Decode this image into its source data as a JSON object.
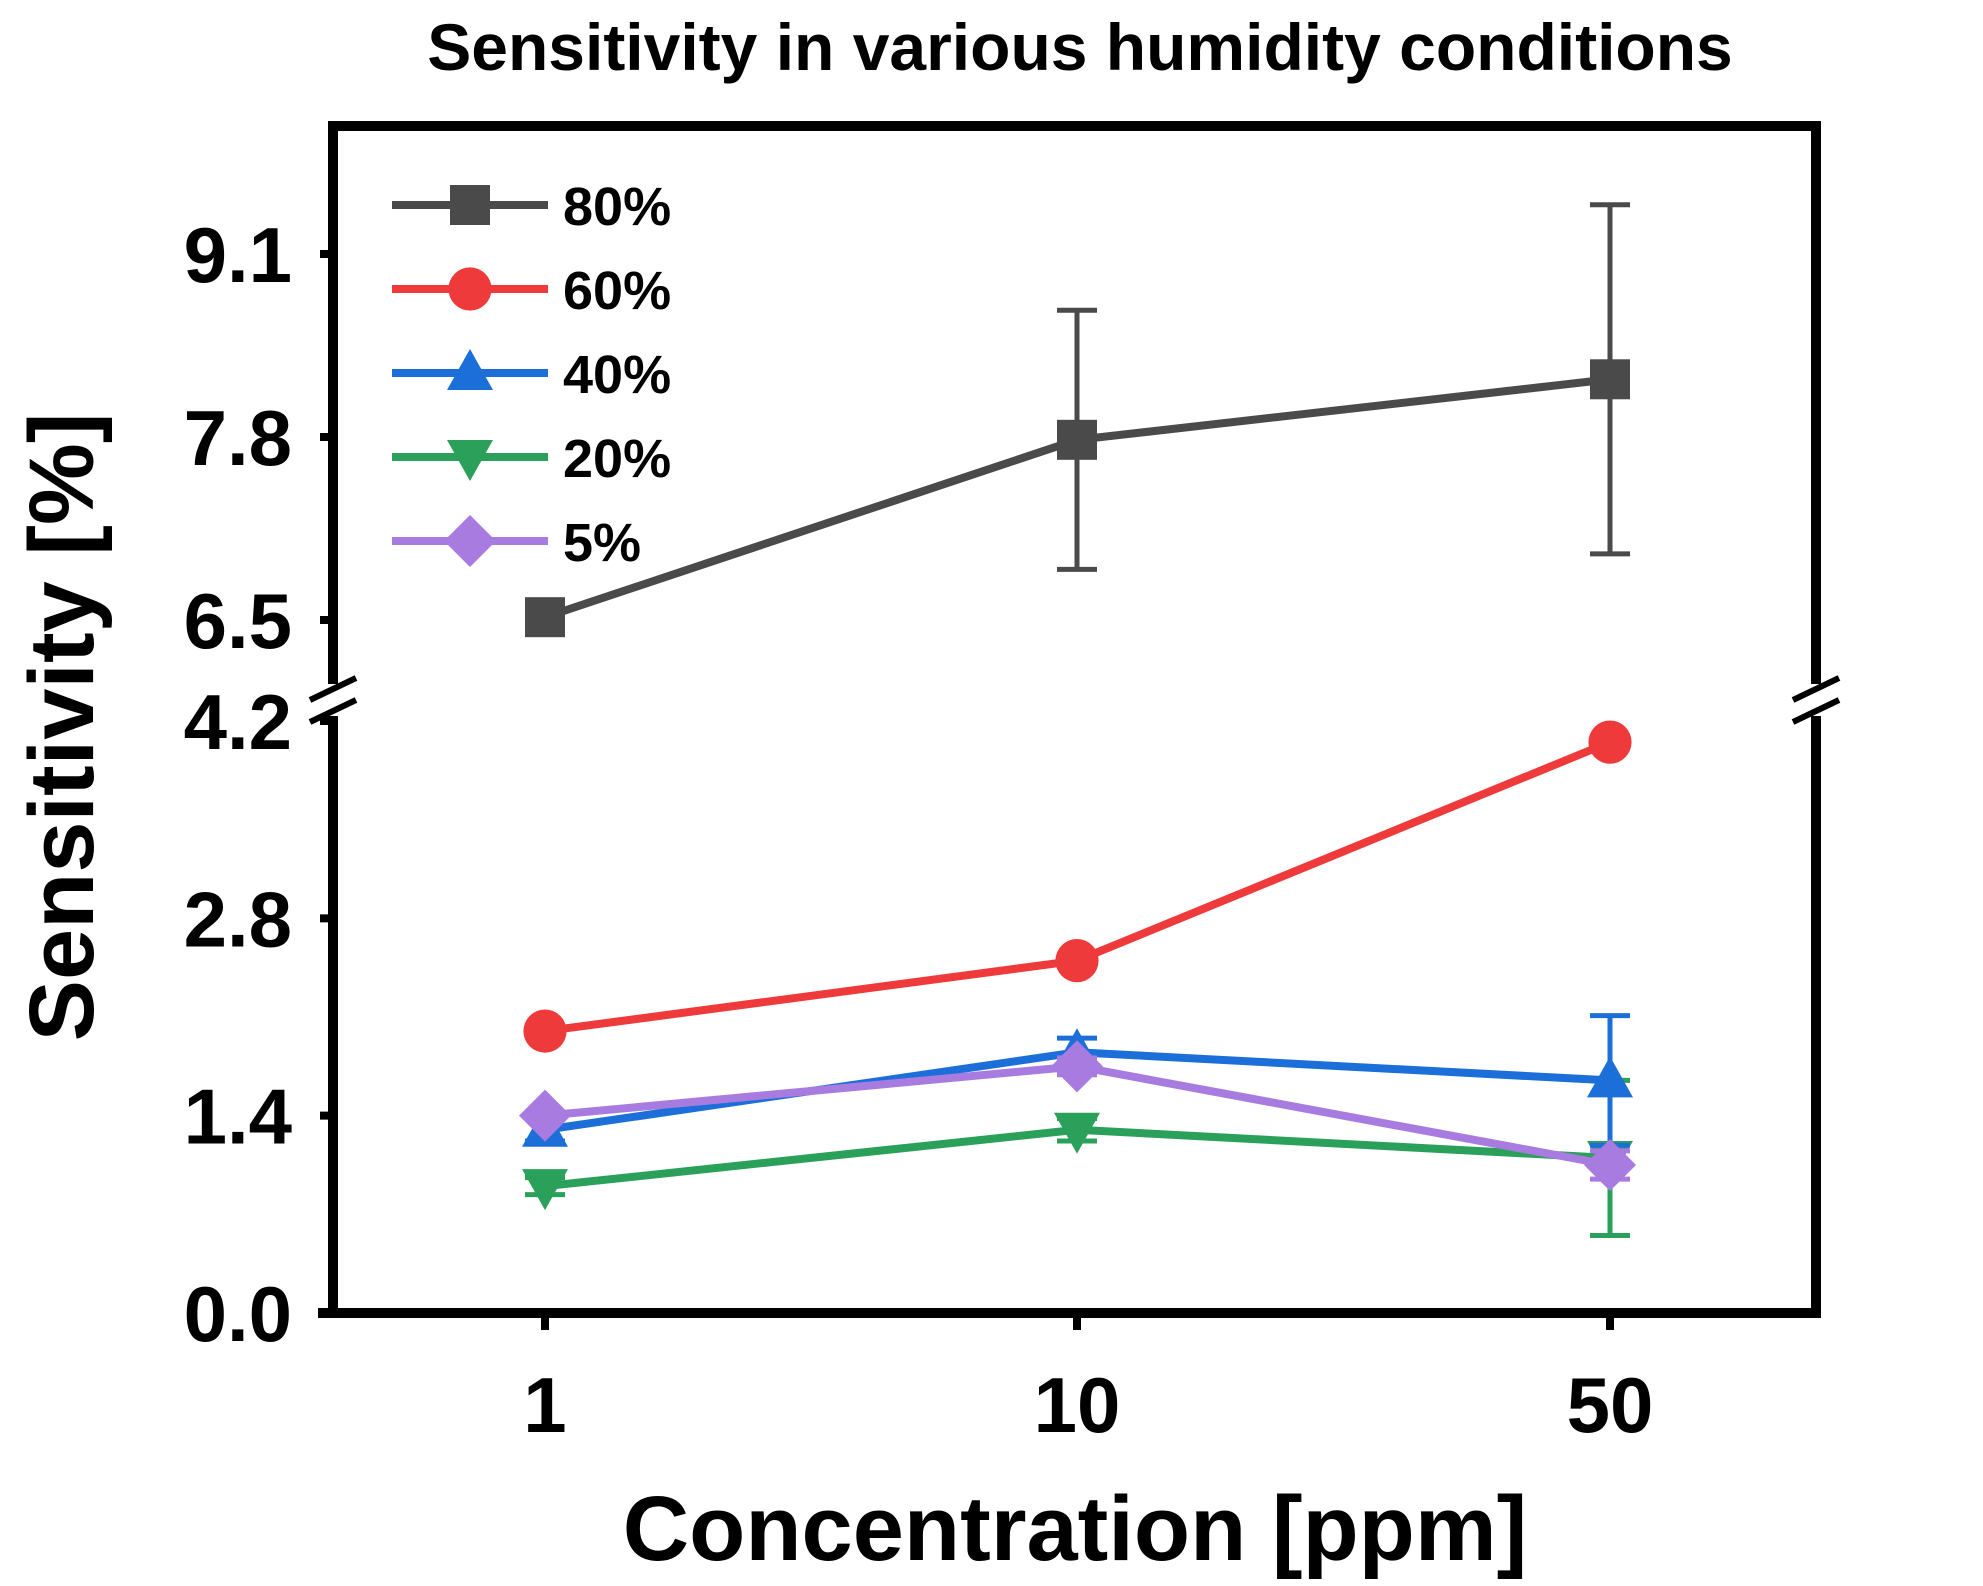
{
  "chart_data": {
    "type": "line",
    "title": "Sensitivity in various humidity conditions",
    "xlabel": "Concentration [ppm]",
    "ylabel": "Sensitivity [%]",
    "categories": [
      "1",
      "10",
      "50"
    ],
    "y_axis_break": {
      "lower_range": [
        0,
        4.2
      ],
      "upper_range": [
        6.5,
        9.1
      ]
    },
    "lower_ticks": [
      "0.0",
      "1.4",
      "2.8",
      "4.2"
    ],
    "upper_ticks": [
      "6.5",
      "7.8",
      "9.1"
    ],
    "legend_position": "top-left",
    "series": [
      {
        "name": "80%",
        "color": "#4a4a4a",
        "marker": "square",
        "values": [
          6.52,
          7.78,
          8.21
        ],
        "errors": [
          0.0,
          0.92,
          1.24
        ]
      },
      {
        "name": "60%",
        "color": "#ee3a3a",
        "marker": "circle",
        "values": [
          2.0,
          2.5,
          4.05
        ],
        "errors": [
          0.0,
          0.0,
          0.0
        ]
      },
      {
        "name": "40%",
        "color": "#1c6fd8",
        "marker": "triangle-up",
        "values": [
          1.3,
          1.85,
          1.65
        ],
        "errors": [
          0.08,
          0.1,
          0.46
        ]
      },
      {
        "name": "20%",
        "color": "#2aa05a",
        "marker": "triangle-down",
        "values": [
          0.9,
          1.3,
          1.1
        ],
        "errors": [
          0.06,
          0.08,
          0.55
        ]
      },
      {
        "name": "5%",
        "color": "#a77be0",
        "marker": "diamond",
        "values": [
          1.4,
          1.75,
          1.05
        ],
        "errors": [
          0.0,
          0.06,
          0.1
        ]
      }
    ]
  }
}
